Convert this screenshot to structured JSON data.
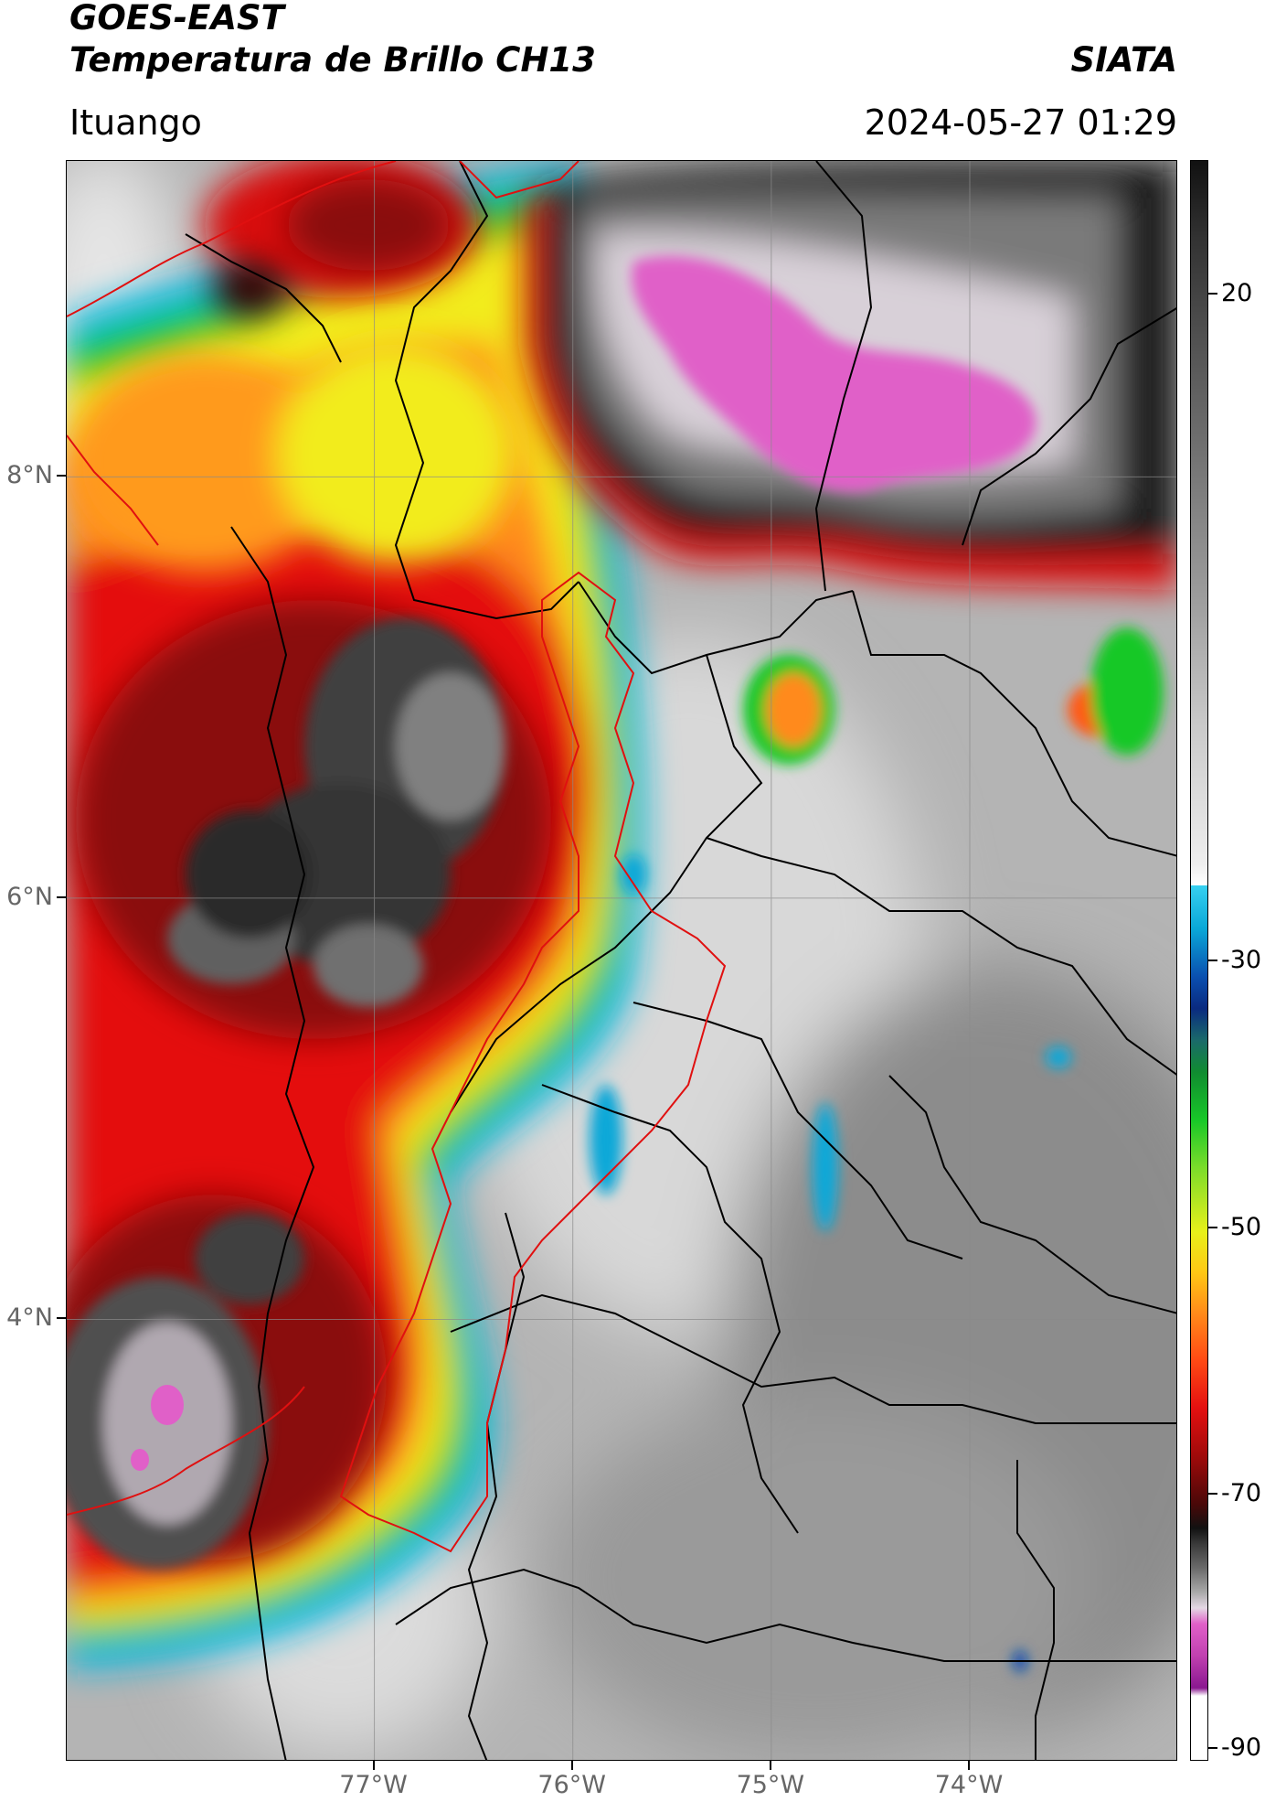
{
  "header": {
    "satellite": "GOES-EAST",
    "product": "Temperatura de Brillo CH13",
    "brand": "SIATA",
    "location": "Ituango",
    "timestamp": "2024-05-27 01:29"
  },
  "map": {
    "lon_range": [
      -78.55,
      -72.95
    ],
    "lat_range": [
      1.9,
      9.5
    ],
    "lat_ticks": [
      {
        "value": 8,
        "label": "8°N"
      },
      {
        "value": 6,
        "label": "6°N"
      },
      {
        "value": 4,
        "label": "4°N"
      }
    ],
    "lon_ticks": [
      {
        "value": -77,
        "label": "77°W"
      },
      {
        "value": -76,
        "label": "76°W"
      },
      {
        "value": -75,
        "label": "75°W"
      },
      {
        "value": -74,
        "label": "74°W"
      }
    ],
    "gridlines": true
  },
  "colorbar": {
    "range": [
      -90,
      30
    ],
    "ticks": [
      {
        "value": 20,
        "label": "20"
      },
      {
        "value": -30,
        "label": "-30"
      },
      {
        "value": -50,
        "label": "-50"
      },
      {
        "value": -70,
        "label": "-70"
      },
      {
        "value": -90,
        "label": "-90"
      }
    ]
  },
  "colors": {
    "clear_sky": "#a8a8a8",
    "cold_cloud_red": "#c00a0a",
    "cloud_top_gray": "#505050",
    "coldest_pink": "#e060c8",
    "department_border": "#000000",
    "region_border": "#e01010"
  }
}
